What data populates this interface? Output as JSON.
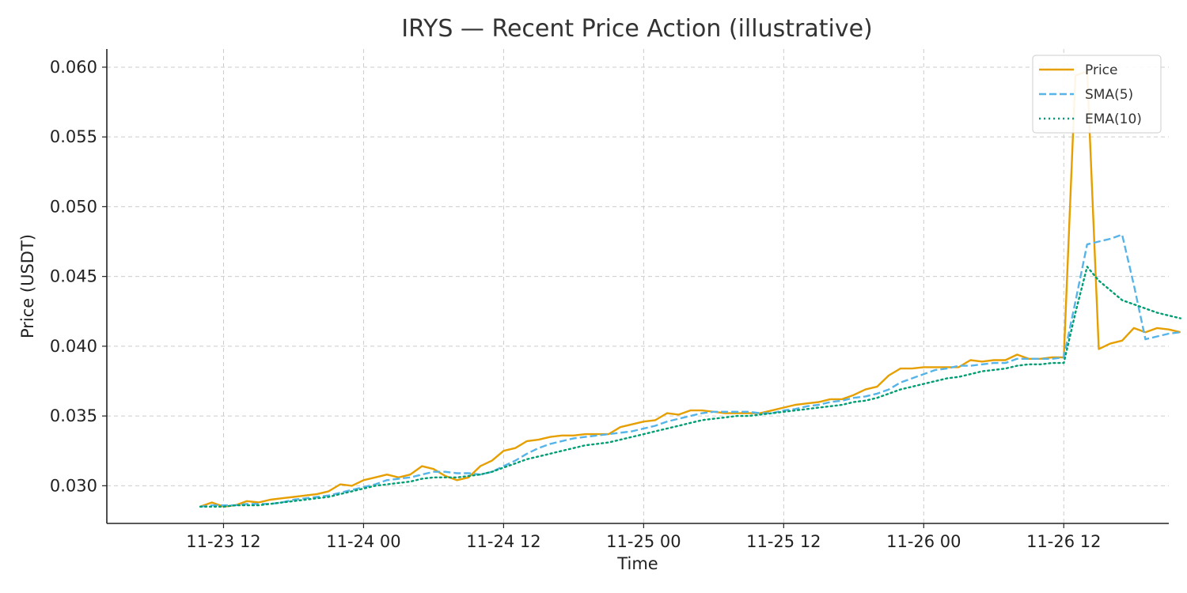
{
  "chart_data": {
    "type": "line",
    "title": "IRYS — Recent Price Action (illustrative)",
    "xlabel": "Time",
    "ylabel": "Price (USDT)",
    "x_start": "2025-11-23 10:00",
    "x_step_hours": 1,
    "x_ticks": [
      {
        "value": "2025-11-23 12:00",
        "label": "11-23 12"
      },
      {
        "value": "2025-11-24 00:00",
        "label": "11-24 00"
      },
      {
        "value": "2025-11-24 12:00",
        "label": "11-24 12"
      },
      {
        "value": "2025-11-25 00:00",
        "label": "11-25 00"
      },
      {
        "value": "2025-11-25 12:00",
        "label": "11-25 12"
      },
      {
        "value": "2025-11-26 00:00",
        "label": "11-26 00"
      },
      {
        "value": "2025-11-26 12:00",
        "label": "11-26 12"
      }
    ],
    "xlim": [
      "2025-11-23 02:00",
      "2025-11-26 21:00"
    ],
    "ylim": [
      0.0273,
      0.0613
    ],
    "y_ticks": [
      0.03,
      0.035,
      0.04,
      0.045,
      0.05,
      0.055,
      0.06
    ],
    "y_tick_labels": [
      "0.030",
      "0.035",
      "0.040",
      "0.045",
      "0.050",
      "0.055",
      "0.060"
    ],
    "grid": true,
    "legend_position": "top-right",
    "series": [
      {
        "name": "Price",
        "color": "#E69F00",
        "dash": "solid",
        "values": [
          0.0285,
          0.0288,
          0.0285,
          0.0286,
          0.0289,
          0.0288,
          0.029,
          0.0291,
          0.0292,
          0.0293,
          0.0294,
          0.0296,
          0.0301,
          0.03,
          0.0304,
          0.0306,
          0.0308,
          0.0306,
          0.0308,
          0.0314,
          0.0312,
          0.0307,
          0.0304,
          0.0306,
          0.0314,
          0.0318,
          0.0325,
          0.0327,
          0.0332,
          0.0333,
          0.0335,
          0.0336,
          0.0336,
          0.0337,
          0.0337,
          0.0337,
          0.0342,
          0.0344,
          0.0346,
          0.0347,
          0.0352,
          0.0351,
          0.0354,
          0.0354,
          0.0353,
          0.0352,
          0.0352,
          0.0352,
          0.0352,
          0.0354,
          0.0356,
          0.0358,
          0.0359,
          0.036,
          0.0362,
          0.0362,
          0.0365,
          0.0369,
          0.0371,
          0.0379,
          0.0384,
          0.0384,
          0.0385,
          0.0385,
          0.0385,
          0.0385,
          0.039,
          0.0389,
          0.039,
          0.039,
          0.0394,
          0.0391,
          0.0391,
          0.0392,
          0.0392,
          0.0594,
          0.0597,
          0.0398,
          0.0402,
          0.0404,
          0.0413,
          0.041,
          0.0413,
          0.0412,
          0.041
        ]
      },
      {
        "name": "SMA(5)",
        "color": "#56B4E9",
        "dash": "dashed",
        "values": [
          0.0285,
          0.0286,
          0.0286,
          0.0286,
          0.0287,
          0.0287,
          0.0287,
          0.0288,
          0.029,
          0.0291,
          0.0292,
          0.0293,
          0.0295,
          0.0297,
          0.0299,
          0.0301,
          0.0304,
          0.0305,
          0.0306,
          0.0308,
          0.031,
          0.031,
          0.0309,
          0.0309,
          0.0308,
          0.031,
          0.0314,
          0.0318,
          0.0323,
          0.0327,
          0.033,
          0.0332,
          0.0334,
          0.0335,
          0.0336,
          0.0337,
          0.0338,
          0.0339,
          0.0341,
          0.0343,
          0.0346,
          0.0348,
          0.035,
          0.0352,
          0.0353,
          0.0353,
          0.0353,
          0.0353,
          0.0352,
          0.0352,
          0.0354,
          0.0355,
          0.0357,
          0.0358,
          0.036,
          0.0361,
          0.0363,
          0.0364,
          0.0366,
          0.0369,
          0.0374,
          0.0377,
          0.038,
          0.0383,
          0.0384,
          0.0386,
          0.0386,
          0.0387,
          0.0388,
          0.0388,
          0.0391,
          0.0391,
          0.0391,
          0.0391,
          0.0392,
          0.0432,
          0.0473,
          0.0475,
          0.0477,
          0.048,
          0.0444,
          0.0405,
          0.0407,
          0.0409,
          0.041
        ]
      },
      {
        "name": "EMA(10)",
        "color": "#009E73",
        "dash": "dotted",
        "values": [
          0.0285,
          0.0285,
          0.0285,
          0.0286,
          0.0286,
          0.0286,
          0.0287,
          0.0288,
          0.0289,
          0.029,
          0.0291,
          0.0292,
          0.0294,
          0.0296,
          0.0298,
          0.03,
          0.0301,
          0.0302,
          0.0303,
          0.0305,
          0.0306,
          0.0306,
          0.0306,
          0.0307,
          0.0308,
          0.031,
          0.0313,
          0.0316,
          0.0319,
          0.0321,
          0.0323,
          0.0325,
          0.0327,
          0.0329,
          0.033,
          0.0331,
          0.0333,
          0.0335,
          0.0337,
          0.0339,
          0.0341,
          0.0343,
          0.0345,
          0.0347,
          0.0348,
          0.0349,
          0.035,
          0.035,
          0.0351,
          0.0352,
          0.0353,
          0.0354,
          0.0355,
          0.0356,
          0.0357,
          0.0358,
          0.036,
          0.0361,
          0.0363,
          0.0366,
          0.0369,
          0.0371,
          0.0373,
          0.0375,
          0.0377,
          0.0378,
          0.038,
          0.0382,
          0.0383,
          0.0384,
          0.0386,
          0.0387,
          0.0387,
          0.0388,
          0.0388,
          0.0424,
          0.0457,
          0.0447,
          0.044,
          0.0433,
          0.043,
          0.0427,
          0.0424,
          0.0422,
          0.042
        ]
      }
    ]
  }
}
